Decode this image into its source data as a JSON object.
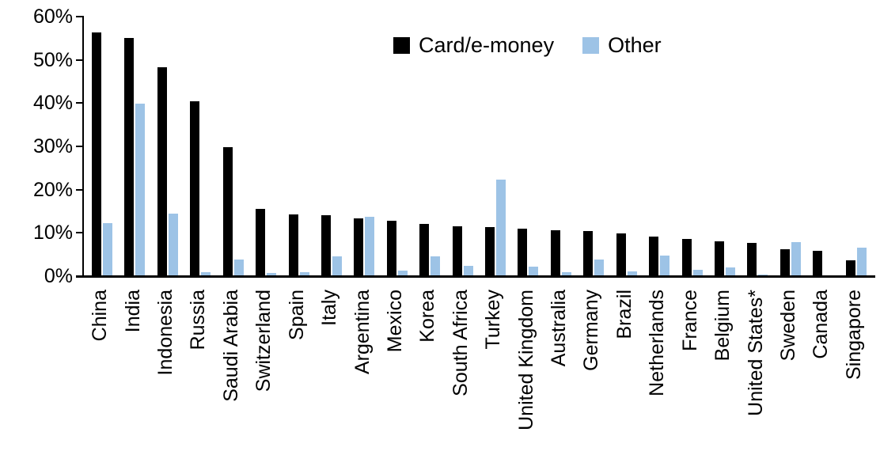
{
  "chart_data": {
    "type": "bar",
    "categories": [
      "China",
      "India",
      "Indonesia",
      "Russia",
      "Saudi Arabia",
      "Switzerland",
      "Spain",
      "Italy",
      "Argentina",
      "Mexico",
      "Korea",
      "South Africa",
      "Turkey",
      "United Kingdom",
      "Australia",
      "Germany",
      "Brazil",
      "Netherlands",
      "France",
      "Belgium",
      "United States*",
      "Sweden",
      "Canada",
      "Singapore"
    ],
    "series": [
      {
        "name": "Card/e-money",
        "color": "#000000",
        "values": [
          56.3,
          55.1,
          48.3,
          40.5,
          29.8,
          15.6,
          14.2,
          14.1,
          13.3,
          12.8,
          12.1,
          11.6,
          11.4,
          11.0,
          10.7,
          10.5,
          9.9,
          9.1,
          8.6,
          8.0,
          7.7,
          6.3,
          5.8,
          3.7
        ]
      },
      {
        "name": "Other",
        "color": "#9DC3E6",
        "values": [
          12.3,
          39.8,
          14.5,
          1.0,
          3.9,
          0.8,
          1.0,
          4.6,
          13.7,
          1.2,
          4.6,
          2.3,
          22.4,
          2.2,
          1.0,
          3.9,
          1.1,
          4.7,
          1.5,
          2.0,
          0.3,
          7.9,
          0.0,
          6.5
        ]
      }
    ],
    "title": "",
    "xlabel": "",
    "ylabel": "",
    "ylim": [
      0,
      60
    ],
    "ytick_labels": [
      "0%",
      "10%",
      "20%",
      "30%",
      "40%",
      "50%",
      "60%"
    ],
    "grid": false,
    "legend_position": "top-center"
  }
}
